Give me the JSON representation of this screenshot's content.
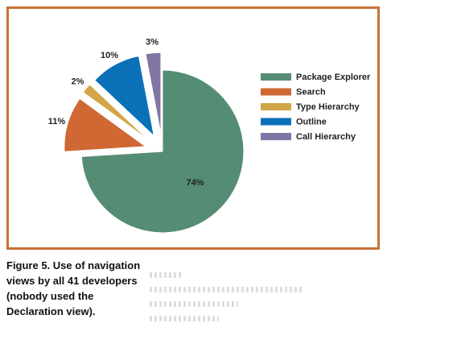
{
  "chart_data": {
    "type": "pie",
    "title": "",
    "slices": [
      {
        "name": "Package Explorer",
        "value": 74,
        "label": "74%",
        "color": "#558c74",
        "exploded": false
      },
      {
        "name": "Search",
        "value": 11,
        "label": "11%",
        "color": "#cf6832",
        "exploded": true
      },
      {
        "name": "Type Hierarchy",
        "value": 2,
        "label": "2%",
        "color": "#d2a547",
        "exploded": true
      },
      {
        "name": "Outline",
        "value": 10,
        "label": "10%",
        "color": "#0a71b8",
        "exploded": true
      },
      {
        "name": "Call Hierarchy",
        "value": 3,
        "label": "3%",
        "color": "#8175a3",
        "exploded": true
      }
    ],
    "legend": {
      "position": "right",
      "entries": [
        "Package Explorer",
        "Search",
        "Type Hierarchy",
        "Outline",
        "Call Hierarchy"
      ]
    },
    "frame_color": "#c8723a"
  },
  "caption": {
    "text": "Figure 5. Use of navigation views by all 41 developers (nobody used the Declaration view)."
  }
}
